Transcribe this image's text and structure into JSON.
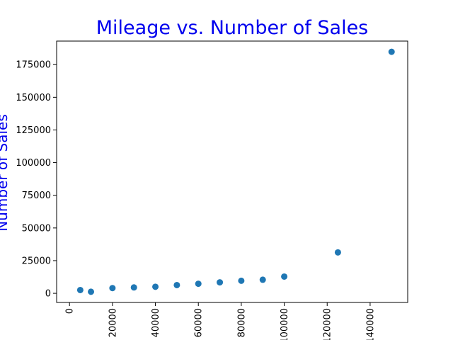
{
  "chart_data": {
    "type": "scatter",
    "title": "Mileage vs. Number of Sales",
    "xlabel": "",
    "ylabel": "Number of Sales",
    "x": [
      5000,
      10000,
      20000,
      30000,
      40000,
      50000,
      60000,
      70000,
      80000,
      90000,
      100000,
      125000,
      150000
    ],
    "y": [
      2500,
      1200,
      4000,
      4500,
      5000,
      6300,
      7300,
      8400,
      9600,
      10400,
      12800,
      31300,
      184800
    ],
    "xlim": [
      -6000,
      157500
    ],
    "ylim": [
      -7000,
      193000
    ],
    "xticks": [
      0,
      20000,
      40000,
      60000,
      80000,
      100000,
      120000,
      140000
    ],
    "xtick_labels": [
      "0",
      "20000",
      "40000",
      "60000",
      "80000",
      "100000",
      "120000",
      "140000"
    ],
    "yticks": [
      0,
      25000,
      50000,
      75000,
      100000,
      125000,
      150000,
      175000
    ],
    "ytick_labels": [
      "0",
      "25000",
      "50000",
      "75000",
      "100000",
      "125000",
      "150000",
      "175000"
    ],
    "xtick_rotation": 90,
    "grid": false,
    "colors": {
      "marker": "#1f77b4",
      "title": "#0000ee",
      "ylabel": "#0000ee"
    }
  }
}
